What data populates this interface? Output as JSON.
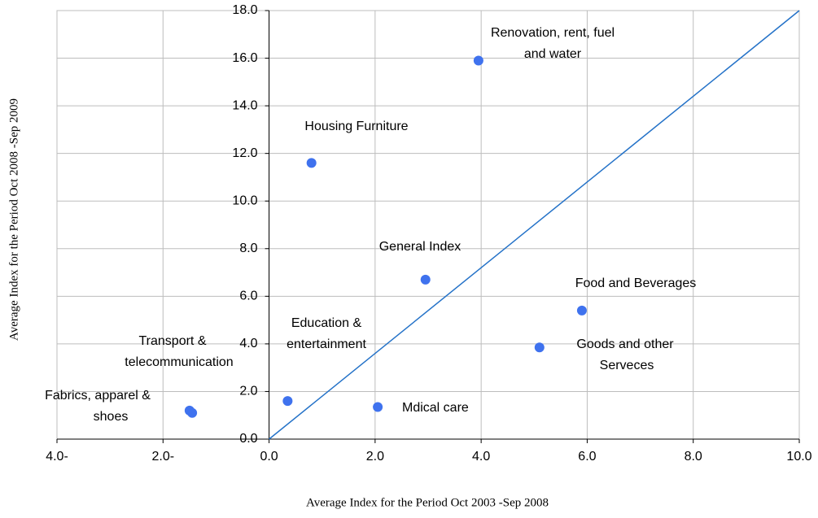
{
  "chart_data": {
    "type": "scatter",
    "x_label": "Average Index for the Period Oct 2003 -Sep 2008",
    "y_label": "Average Index for the  Period Oct 2008 -Sep 2009",
    "color": "#3f72ee",
    "line_color": "#2472c8",
    "grid": true,
    "xlim": [
      -4,
      10
    ],
    "ylim": [
      0,
      18
    ],
    "xticks": [
      {
        "value": -4,
        "label": "4.0-"
      },
      {
        "value": -2,
        "label": "2.0-"
      },
      {
        "value": 0,
        "label": "0.0"
      },
      {
        "value": 2,
        "label": "2.0"
      },
      {
        "value": 4,
        "label": "4.0"
      },
      {
        "value": 6,
        "label": "6.0"
      },
      {
        "value": 8,
        "label": "8.0"
      },
      {
        "value": 10,
        "label": "10.0"
      }
    ],
    "yticks": [
      {
        "value": 0,
        "label": "0.0"
      },
      {
        "value": 2,
        "label": "2.0"
      },
      {
        "value": 4,
        "label": "4.0"
      },
      {
        "value": 6,
        "label": "6.0"
      },
      {
        "value": 8,
        "label": "8.0"
      },
      {
        "value": 10,
        "label": "10.0"
      },
      {
        "value": 12,
        "label": "12.0"
      },
      {
        "value": 14,
        "label": "14.0"
      },
      {
        "value": 16,
        "label": "16.0"
      },
      {
        "value": 18,
        "label": "18.0"
      }
    ],
    "points": [
      {
        "label": [
          "Renovation, rent, fuel",
          "and water"
        ],
        "x": 3.95,
        "y": 15.9
      },
      {
        "label": [
          "Housing Furniture"
        ],
        "x": 0.8,
        "y": 11.6
      },
      {
        "label": [
          "General Index"
        ],
        "x": 2.95,
        "y": 6.7
      },
      {
        "label": [
          "Food and Beverages"
        ],
        "x": 5.9,
        "y": 5.4
      },
      {
        "label": [
          "Goods and other",
          "Serveces"
        ],
        "x": 5.1,
        "y": 3.85
      },
      {
        "label": [
          "Education &",
          "entertainment"
        ],
        "x": 0.35,
        "y": 1.6
      },
      {
        "label": [
          "Mdical care"
        ],
        "x": 2.05,
        "y": 1.35
      },
      {
        "label": [
          "Transport &",
          "telecommunication"
        ],
        "x": -1.5,
        "y": 1.2
      },
      {
        "label": [
          "Fabrics, apparel &",
          "shoes"
        ],
        "x": -1.45,
        "y": 1.1
      }
    ],
    "reference_line": {
      "x": [
        0,
        10
      ],
      "y": [
        0,
        18
      ]
    }
  }
}
